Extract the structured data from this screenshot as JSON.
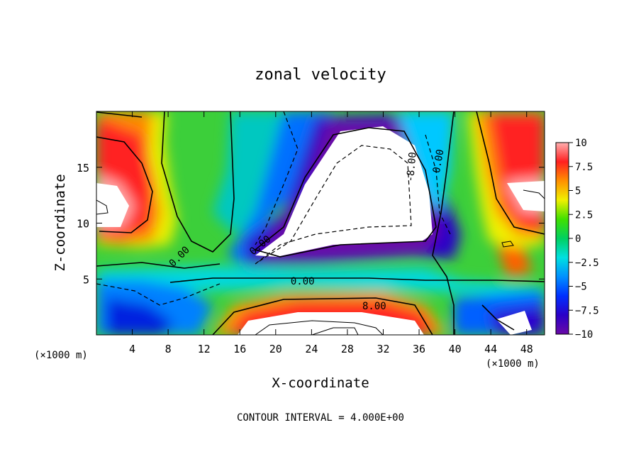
{
  "chart_data": {
    "type": "heatmap",
    "title": "zonal velocity",
    "xlabel": "X-coordinate",
    "ylabel": "Z-coordinate",
    "x_unit_left": "(×1000 m)",
    "x_unit_right": "(×1000 m)",
    "footer": "CONTOUR INTERVAL = 4.000E+00",
    "xlim": [
      0,
      50
    ],
    "ylim": [
      0,
      20
    ],
    "x_ticks": [
      4,
      8,
      12,
      16,
      20,
      24,
      28,
      32,
      36,
      40,
      44,
      48
    ],
    "y_ticks": [
      5,
      10,
      15
    ],
    "colorbar": {
      "range": [
        -10,
        10
      ],
      "ticks": [
        10,
        7.5,
        5,
        2.5,
        0,
        -2.5,
        -5,
        -7.5,
        -10
      ],
      "tick_labels": [
        "10",
        "7.5",
        "5",
        "2.5",
        "0",
        "−2.5",
        "−5",
        "−7.5",
        "−10"
      ]
    },
    "contour_labels": [
      {
        "text": "0.00",
        "x": 9.5,
        "z": 6.8
      },
      {
        "text": "0.00",
        "x": 18.5,
        "z": 7.8
      },
      {
        "text": "0.00",
        "x": 23,
        "z": 4.5
      },
      {
        "text": "0.00",
        "x": 38.5,
        "z": 15.5
      },
      {
        "text": "-8.00",
        "x": 35.5,
        "z": 15
      },
      {
        "text": "8.00",
        "x": 31,
        "z": 2.3
      }
    ],
    "features": [
      {
        "name": "strong eastward jet",
        "x": [
          0,
          8
        ],
        "z": [
          8,
          19
        ],
        "peak": 10
      },
      {
        "name": "strong westward core",
        "x": [
          22,
          37
        ],
        "z": [
          7,
          19
        ],
        "peak": -10
      },
      {
        "name": "near-surface eastward jet",
        "x": [
          14,
          38
        ],
        "z": [
          0,
          3
        ],
        "peak": 10
      },
      {
        "name": "eastward jet",
        "x": [
          42,
          50
        ],
        "z": [
          9,
          19
        ],
        "peak": 10
      }
    ]
  }
}
